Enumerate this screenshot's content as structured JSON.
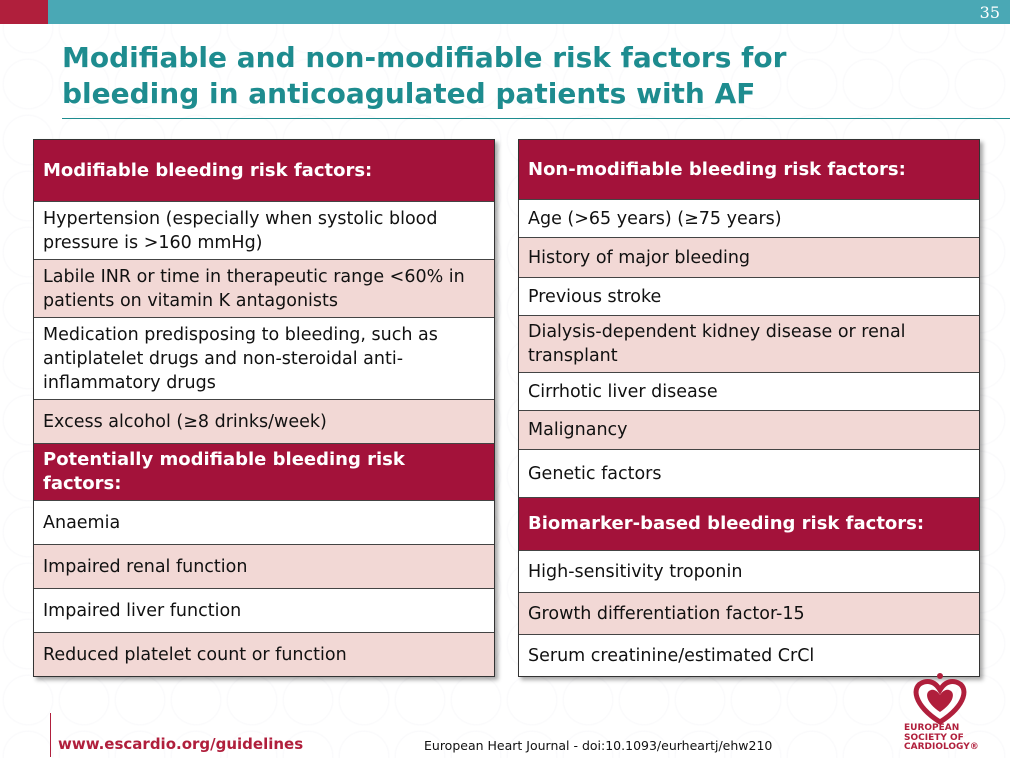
{
  "slide": {
    "number": "35",
    "title_line1": "Modifiable and non-modifiable risk factors for",
    "title_line2": "bleeding in anticoagulated patients with AF"
  },
  "left_table": {
    "sections": [
      {
        "heading": "Modifiable bleeding risk factors:",
        "rows": [
          {
            "text": "Hypertension (especially when systolic blood pressure is >160 mmHg)"
          },
          {
            "text": "Labile INR or time in therapeutic range <60% in patients on vitamin K antagonists"
          },
          {
            "text": "Medication predisposing to bleeding, such as antiplatelet drugs and non-steroidal anti-inflammatory drugs"
          },
          {
            "text": "Excess alcohol (≥8 drinks/week)"
          }
        ]
      },
      {
        "heading": "Potentially modifiable bleeding risk factors:",
        "rows": [
          {
            "text": "Anaemia"
          },
          {
            "text": "Impaired renal function"
          },
          {
            "text": "Impaired liver function"
          },
          {
            "text": "Reduced platelet count or function"
          }
        ]
      }
    ]
  },
  "right_table": {
    "sections": [
      {
        "heading": "Non-modifiable bleeding risk factors:",
        "rows": [
          {
            "text": "Age (>65 years) (≥75 years)"
          },
          {
            "text": "History of major bleeding"
          },
          {
            "text": "Previous stroke"
          },
          {
            "text": "Dialysis-dependent kidney disease or renal transplant"
          },
          {
            "text": "Cirrhotic liver disease"
          },
          {
            "text": "Malignancy"
          },
          {
            "text": "Genetic factors"
          }
        ]
      },
      {
        "heading": "Biomarker-based bleeding risk factors:",
        "rows": [
          {
            "text": "High-sensitivity troponin"
          },
          {
            "text": "Growth differentiation factor-15"
          },
          {
            "text": "Serum creatinine/estimated CrCl"
          }
        ]
      }
    ]
  },
  "footer": {
    "url": "www.escardio.org/guidelines",
    "citation": "European Heart Journal - doi:10.1093/eurheartj/ehw210",
    "logo_line1": "EUROPEAN",
    "logo_line2": "SOCIETY OF",
    "logo_line3": "CARDIOLOGY®"
  },
  "colors": {
    "teal": "#4aa8b5",
    "title_teal": "#1e8c8f",
    "header_red": "#a3123a",
    "row_pink": "#f2d8d5",
    "brand_red": "#b01f3c"
  }
}
